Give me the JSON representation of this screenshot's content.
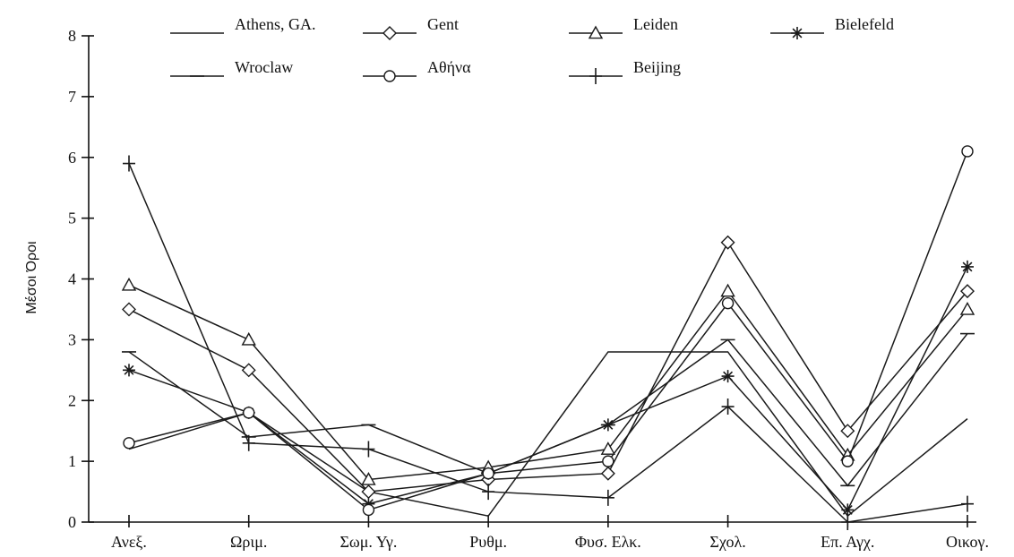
{
  "chart_data": {
    "type": "line",
    "title": "",
    "xlabel": "",
    "ylabel": "Μέσοι Όροι",
    "ylim": [
      0,
      8
    ],
    "yticks": [
      0,
      1,
      2,
      3,
      4,
      5,
      6,
      7,
      8
    ],
    "categories": [
      "Ανεξ.",
      "Ωριμ.",
      "Σωμ. Υγ.",
      "Ρυθμ.",
      "Φυσ. Ελκ.",
      "Σχολ.",
      "Επ. Αγχ.",
      "Οικογ."
    ],
    "grid": false,
    "legend_position": "top",
    "series": [
      {
        "name": "Athens, GA.",
        "marker": "none",
        "values": [
          1.2,
          1.8,
          0.5,
          0.1,
          2.8,
          2.8,
          0.1,
          1.7
        ]
      },
      {
        "name": "Gent",
        "marker": "diamond",
        "values": [
          3.5,
          2.5,
          0.5,
          0.7,
          0.8,
          4.6,
          1.5,
          3.8
        ]
      },
      {
        "name": "Leiden",
        "marker": "triangle",
        "values": [
          3.9,
          3.0,
          0.7,
          0.9,
          1.2,
          3.8,
          1.1,
          3.5
        ]
      },
      {
        "name": "Bielefeld",
        "marker": "star",
        "values": [
          2.5,
          1.8,
          0.3,
          0.8,
          1.6,
          2.4,
          0.2,
          4.2
        ]
      },
      {
        "name": "Wroclaw",
        "marker": "dash",
        "values": [
          2.8,
          1.4,
          1.6,
          0.8,
          1.6,
          3.0,
          0.6,
          3.1
        ]
      },
      {
        "name": "Αθήνα",
        "marker": "circle",
        "values": [
          1.3,
          1.8,
          0.2,
          0.8,
          1.0,
          3.6,
          1.0,
          6.1
        ]
      },
      {
        "name": "Beijing",
        "marker": "plus",
        "values": [
          5.9,
          1.3,
          1.2,
          0.5,
          0.4,
          1.9,
          0.0,
          0.3
        ]
      }
    ]
  }
}
